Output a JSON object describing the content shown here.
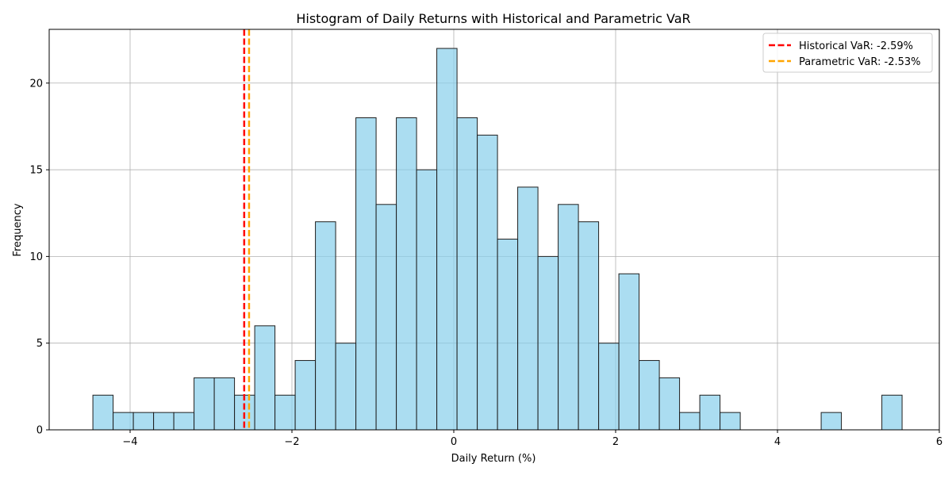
{
  "chart_data": {
    "type": "bar",
    "title": "Histogram of Daily Returns with Historical and Parametric VaR",
    "xlabel": "Daily Return (%)",
    "ylabel": "Frequency",
    "xlim": [
      -5.0,
      6.0
    ],
    "ylim": [
      0,
      23.1
    ],
    "xticks": [
      -4,
      -2,
      0,
      2,
      4,
      6
    ],
    "xtick_labels": [
      "−4",
      "−2",
      "0",
      "2",
      "4",
      "6"
    ],
    "yticks": [
      0,
      5,
      10,
      15,
      20
    ],
    "ytick_labels": [
      "0",
      "5",
      "10",
      "15",
      "20"
    ],
    "grid": true,
    "bin_start": -4.46,
    "bin_width": 0.25,
    "values": [
      2,
      1,
      1,
      1,
      1,
      3,
      3,
      2,
      6,
      2,
      4,
      12,
      5,
      18,
      13,
      18,
      15,
      22,
      18,
      17,
      11,
      14,
      10,
      13,
      12,
      5,
      9,
      4,
      3,
      1,
      2,
      1,
      0,
      0,
      0,
      0,
      1,
      0,
      0,
      2
    ],
    "bar_color": "#87ceeb",
    "bar_edge_color": "#1f1f1f",
    "vlines": [
      {
        "name": "Historical VaR: -2.59%",
        "x": -2.59,
        "color": "#ff0000"
      },
      {
        "name": "Parametric VaR: -2.53%",
        "x": -2.53,
        "color": "#ffa500"
      }
    ],
    "legend_position": "top-right"
  }
}
